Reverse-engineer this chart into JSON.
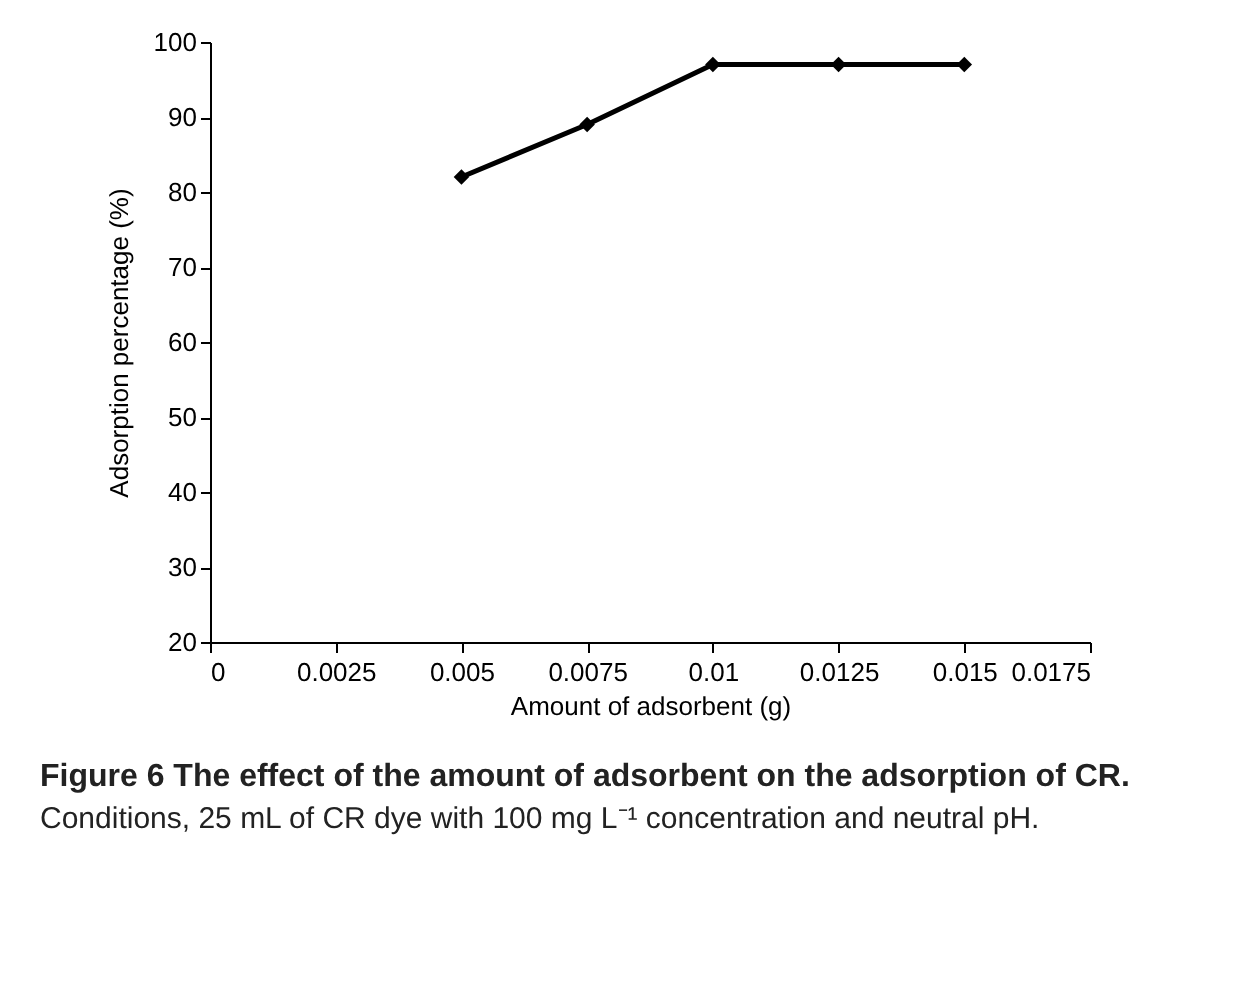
{
  "chart_data": {
    "type": "line",
    "title": "Figure 6 The effect of the amount of adsorbent on the adsorption of CR.",
    "subtitle": "Conditions, 25 mL of CR dye with 100 mg L⁻¹ concentration and neutral pH.",
    "xlabel": "Amount of adsorbent (g)",
    "ylabel": "Adsorption percentage (%)",
    "x": [
      0.005,
      0.0075,
      0.01,
      0.0125,
      0.015
    ],
    "series": [
      {
        "color": "#000000",
        "values": [
          82,
          89,
          97,
          97,
          97
        ]
      }
    ],
    "xlim": [
      0,
      0.0175
    ],
    "xticks": [
      0,
      0.0025,
      0.005,
      0.0075,
      0.01,
      0.0125,
      0.015,
      0.0175
    ],
    "ylim": [
      20,
      100
    ],
    "yticks": [
      20,
      30,
      40,
      50,
      60,
      70,
      80,
      90,
      100
    ],
    "grid": false,
    "marker": "diamond",
    "line_style": "solid"
  }
}
